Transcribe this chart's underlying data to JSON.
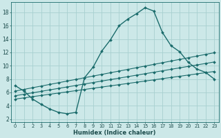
{
  "xlabel": "Humidex (Indice chaleur)",
  "bg_color": "#cce8e8",
  "grid_color": "#a8d0d0",
  "line_color": "#1a6b6b",
  "xlim": [
    -0.5,
    23.5
  ],
  "ylim": [
    1.5,
    19.5
  ],
  "xticks": [
    0,
    1,
    2,
    3,
    4,
    5,
    6,
    7,
    8,
    9,
    10,
    11,
    12,
    13,
    14,
    15,
    16,
    17,
    18,
    19,
    20,
    21,
    22,
    23
  ],
  "yticks": [
    2,
    4,
    6,
    8,
    10,
    12,
    14,
    16,
    18
  ],
  "main_line_x": [
    0,
    1,
    2,
    3,
    4,
    5,
    6,
    7,
    8,
    9,
    10,
    11,
    12,
    13,
    14,
    15,
    16,
    17,
    18,
    19,
    20,
    21,
    22,
    23
  ],
  "main_line_y": [
    7.0,
    6.2,
    5.0,
    4.2,
    3.5,
    3.0,
    2.8,
    3.0,
    8.2,
    9.8,
    12.2,
    13.9,
    16.0,
    17.0,
    17.8,
    18.7,
    18.2,
    15.0,
    13.0,
    12.1,
    10.5,
    9.5,
    9.0,
    8.0
  ],
  "upper_line_x": [
    0,
    1,
    2,
    3,
    4,
    5,
    6,
    7,
    8,
    9,
    10,
    11,
    12,
    13,
    14,
    15,
    16,
    17,
    18,
    19,
    20,
    21,
    22,
    23
  ],
  "upper_line_y": [
    6.2,
    6.45,
    6.7,
    6.95,
    7.2,
    7.45,
    7.7,
    7.95,
    8.2,
    8.45,
    8.7,
    8.95,
    9.2,
    9.45,
    9.7,
    9.95,
    10.2,
    10.45,
    10.7,
    10.95,
    11.2,
    11.45,
    11.7,
    11.95
  ],
  "mid_line_x": [
    0,
    1,
    2,
    3,
    4,
    5,
    6,
    7,
    8,
    9,
    10,
    11,
    12,
    13,
    14,
    15,
    16,
    17,
    18,
    19,
    20,
    21,
    22,
    23
  ],
  "mid_line_y": [
    5.5,
    5.72,
    5.94,
    6.16,
    6.38,
    6.6,
    6.82,
    7.04,
    7.26,
    7.48,
    7.7,
    7.92,
    8.14,
    8.36,
    8.58,
    8.8,
    9.02,
    9.24,
    9.46,
    9.68,
    9.9,
    10.12,
    10.34,
    10.56
  ],
  "lower_line_x": [
    0,
    1,
    2,
    3,
    4,
    5,
    6,
    7,
    8,
    9,
    10,
    11,
    12,
    13,
    14,
    15,
    16,
    17,
    18,
    19,
    20,
    21,
    22,
    23
  ],
  "lower_line_y": [
    5.0,
    5.18,
    5.36,
    5.54,
    5.72,
    5.9,
    6.08,
    6.26,
    6.44,
    6.62,
    6.8,
    6.98,
    7.16,
    7.34,
    7.52,
    7.7,
    7.88,
    8.06,
    8.24,
    8.42,
    8.6,
    8.78,
    8.96,
    9.14
  ]
}
